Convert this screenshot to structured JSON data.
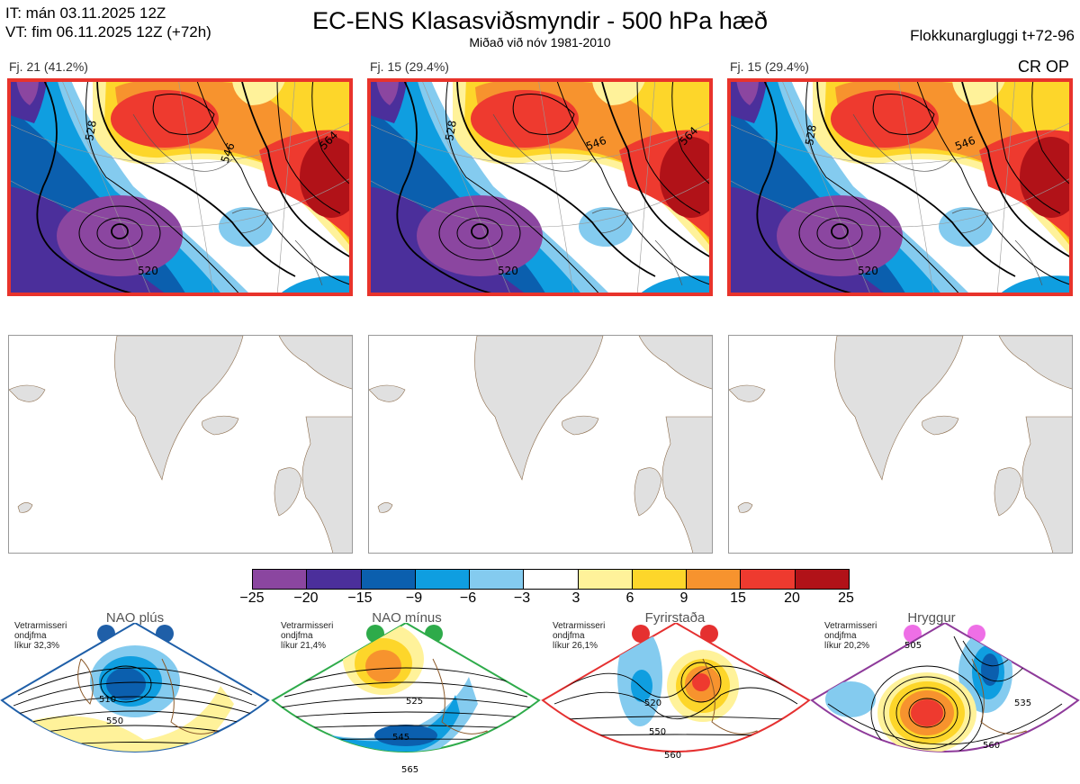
{
  "header": {
    "it_line": "IT: mán 03.11.2025 12Z",
    "vt_line": "VT: fim 06.11.2025 12Z  (+72h)",
    "title": "EC-ENS Klasasviðsmyndir - 500 hPa hæð",
    "subtitle": "Miðað við nóv 1981-2010",
    "window": "Flokkunargluggi t+72-96"
  },
  "clusters": [
    {
      "label": "Fj. 21 (41.2%)"
    },
    {
      "label": "Fj. 15 (29.4%)"
    },
    {
      "label": "Fj. 15 (29.4%)"
    }
  ],
  "cr_op": "CR OP",
  "contour_labels": [
    "528",
    "546",
    "564",
    "520",
    "564",
    "5"
  ],
  "colorbar": {
    "ticks": [
      "−25",
      "−20",
      "−15",
      "−9",
      "−6",
      "−3",
      "3",
      "6",
      "9",
      "15",
      "20",
      "25"
    ],
    "colors": [
      "#8b46a0",
      "#4b2f9b",
      "#0b5fae",
      "#0f9ee0",
      "#84cbef",
      "#ffffff",
      "#fff29a",
      "#fdd62a",
      "#f7932e",
      "#ee3a2f",
      "#b11218"
    ]
  },
  "regimes": [
    {
      "name": "NAO plús",
      "info": [
        "Vetrarmisseri",
        "ondjfma",
        "líkur 32,3%"
      ],
      "color": "#1f5fa8",
      "labels": [
        "510",
        "550"
      ]
    },
    {
      "name": "NAO mínus",
      "info": [
        "Vetrarmisseri",
        "ondjfma",
        "líkur 21,4%"
      ],
      "color": "#2eab4a",
      "labels": [
        "525",
        "545",
        "565"
      ]
    },
    {
      "name": "Fyrirstaða",
      "info": [
        "Vetrarmisseri",
        "ondjfma",
        "líkur 26,1%"
      ],
      "color": "#e53030",
      "labels": [
        "520",
        "550",
        "560"
      ]
    },
    {
      "name": "Hryggur",
      "info": [
        "Vetrarmisseri",
        "ondjfma",
        "líkur 20,2%"
      ],
      "color": "#8e3a9a",
      "labels": [
        "505",
        "535",
        "560"
      ]
    }
  ]
}
